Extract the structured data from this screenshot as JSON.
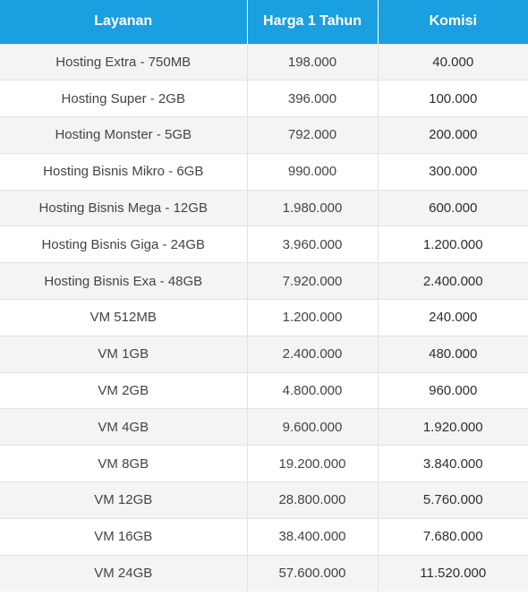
{
  "table": {
    "headers": [
      "Layanan",
      "Harga 1 Tahun",
      "Komisi"
    ],
    "rows": [
      [
        "Hosting Extra - 750MB",
        "198.000",
        "40.000"
      ],
      [
        "Hosting Super - 2GB",
        "396.000",
        "100.000"
      ],
      [
        "Hosting Monster - 5GB",
        "792.000",
        "200.000"
      ],
      [
        "Hosting Bisnis Mikro - 6GB",
        "990.000",
        "300.000"
      ],
      [
        "Hosting Bisnis Mega - 12GB",
        "1.980.000",
        "600.000"
      ],
      [
        "Hosting Bisnis Giga - 24GB",
        "3.960.000",
        "1.200.000"
      ],
      [
        "Hosting Bisnis Exa - 48GB",
        "7.920.000",
        "2.400.000"
      ],
      [
        "VM 512MB",
        "1.200.000",
        "240.000"
      ],
      [
        "VM 1GB",
        "2.400.000",
        "480.000"
      ],
      [
        "VM 2GB",
        "4.800.000",
        "960.000"
      ],
      [
        "VM 4GB",
        "9.600.000",
        "1.920.000"
      ],
      [
        "VM 8GB",
        "19.200.000",
        "3.840.000"
      ],
      [
        "VM 12GB",
        "28.800.000",
        "5.760.000"
      ],
      [
        "VM 16GB",
        "38.400.000",
        "7.680.000"
      ],
      [
        "VM 24GB",
        "57.600.000",
        "11.520.000"
      ]
    ]
  },
  "colors": {
    "header_bg": "#1a9fe0",
    "header_text": "#ffffff",
    "row_alt_bg": "#f4f4f4",
    "row_bg": "#ffffff",
    "cell_text": "#444444"
  }
}
